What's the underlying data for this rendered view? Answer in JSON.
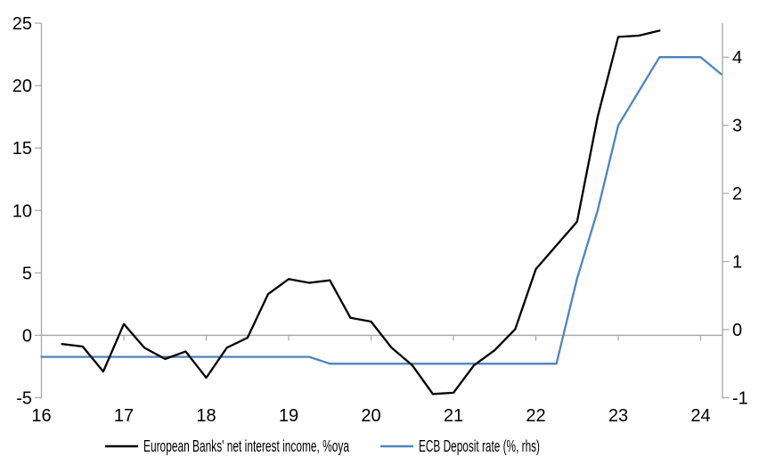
{
  "chart_data": {
    "type": "line",
    "title": "",
    "x_axis": {
      "tick_labels": [
        "16",
        "17",
        "18",
        "19",
        "20",
        "21",
        "22",
        "23",
        "24"
      ],
      "tick_values": [
        16,
        17,
        18,
        19,
        20,
        21,
        22,
        23,
        24
      ],
      "range": [
        16,
        24.27
      ],
      "year_ticks_on_zero_line": [
        17,
        18,
        19,
        20,
        21,
        22,
        23,
        24
      ]
    },
    "left_axis": {
      "tick_labels": [
        "25",
        "20",
        "15",
        "10",
        "5",
        "0",
        "-5"
      ],
      "tick_values": [
        25,
        20,
        15,
        10,
        5,
        0,
        -5
      ],
      "range": [
        -5,
        25
      ]
    },
    "right_axis": {
      "tick_labels": [
        "4",
        "3",
        "2",
        "1",
        "0",
        "-1"
      ],
      "tick_values": [
        4,
        3,
        2,
        1,
        0,
        -1
      ],
      "range": [
        -1,
        4.5
      ]
    },
    "grid": "zero-line-only",
    "legend_position": "bottom",
    "series": [
      {
        "name": "European Banks' net interest income, %oya",
        "axis": "left",
        "color": "#000000",
        "points": [
          [
            16.25,
            -0.7
          ],
          [
            16.5,
            -0.9
          ],
          [
            16.75,
            -2.9
          ],
          [
            17.0,
            0.9
          ],
          [
            17.25,
            -1.0
          ],
          [
            17.5,
            -1.9
          ],
          [
            17.75,
            -1.3
          ],
          [
            18.0,
            -3.4
          ],
          [
            18.25,
            -1.0
          ],
          [
            18.5,
            -0.2
          ],
          [
            18.75,
            3.3
          ],
          [
            19.0,
            4.5
          ],
          [
            19.25,
            4.2
          ],
          [
            19.5,
            4.4
          ],
          [
            19.75,
            1.4
          ],
          [
            20.0,
            1.1
          ],
          [
            20.25,
            -1.0
          ],
          [
            20.5,
            -2.4
          ],
          [
            20.75,
            -4.7
          ],
          [
            21.0,
            -4.6
          ],
          [
            21.25,
            -2.4
          ],
          [
            21.5,
            -1.2
          ],
          [
            21.75,
            0.5
          ],
          [
            22.0,
            5.3
          ],
          [
            22.25,
            7.2
          ],
          [
            22.5,
            9.1
          ],
          [
            22.75,
            17.5
          ],
          [
            23.0,
            23.9
          ],
          [
            23.25,
            24.0
          ],
          [
            23.5,
            24.4
          ]
        ]
      },
      {
        "name": "ECB Deposit rate (%, rhs)",
        "axis": "right",
        "color": "#4e84bf",
        "points": [
          [
            16.0,
            -0.4
          ],
          [
            19.25,
            -0.4
          ],
          [
            19.5,
            -0.5
          ],
          [
            22.25,
            -0.5
          ],
          [
            22.5,
            0.75
          ],
          [
            22.75,
            1.75
          ],
          [
            23.0,
            3.0
          ],
          [
            23.25,
            3.5
          ],
          [
            23.5,
            4.0
          ],
          [
            23.75,
            4.0
          ],
          [
            24.0,
            4.0
          ],
          [
            24.25,
            3.75
          ]
        ]
      }
    ],
    "axis_color": "#a6a6a6",
    "zero_line_color": "#a6a6a6"
  }
}
